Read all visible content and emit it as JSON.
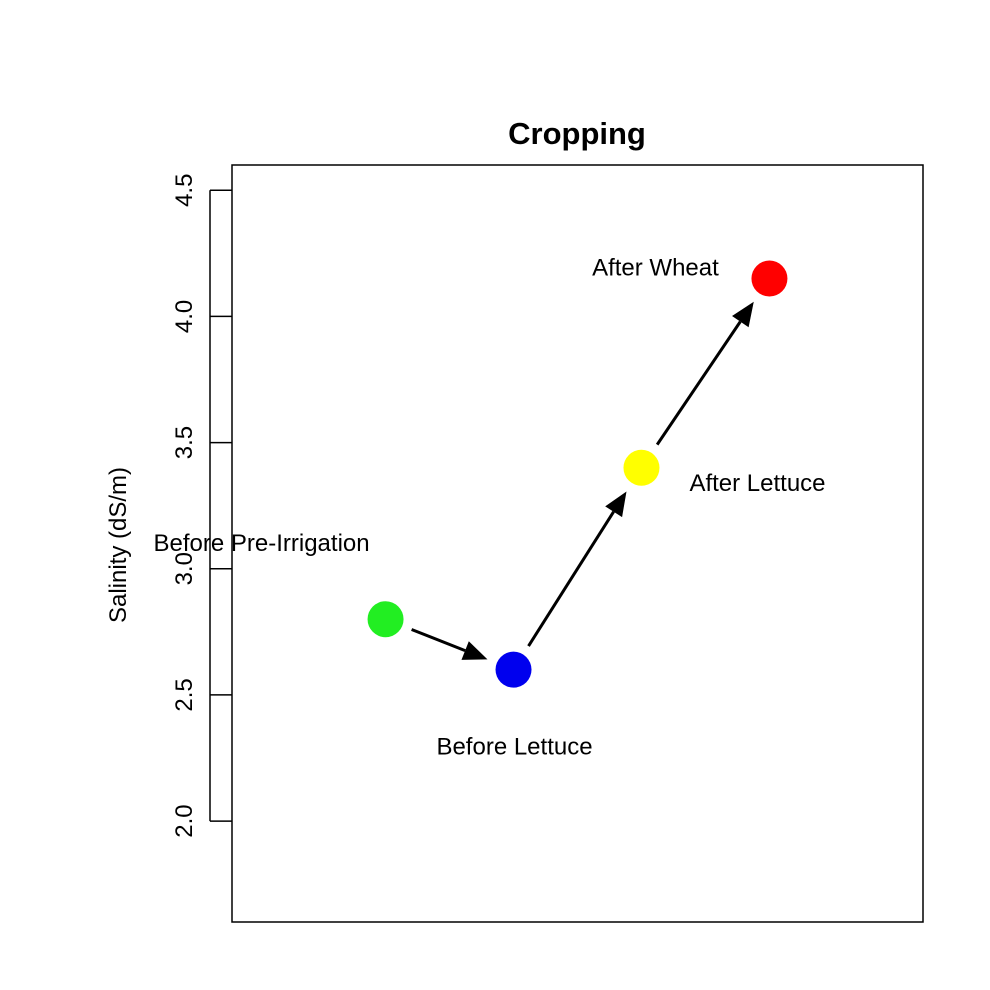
{
  "chart_data": {
    "type": "scatter",
    "title": "Cropping",
    "xlabel": "",
    "ylabel": "Salinity (dS/m)",
    "xlim": [
      0.5,
      5.9
    ],
    "ylim": [
      1.6,
      4.6
    ],
    "yticks": [
      "2.0",
      "2.5",
      "3.0",
      "3.5",
      "4.0",
      "4.5"
    ],
    "grid": false,
    "points": [
      {
        "label": "Before Pre-Irrigation",
        "x": 1.7,
        "y": 2.8,
        "color": "#22EE22",
        "label_pos": "above-left"
      },
      {
        "label": "Before Lettuce",
        "x": 2.7,
        "y": 2.6,
        "color": "#0000EE",
        "label_pos": "below"
      },
      {
        "label": "After Lettuce",
        "x": 3.7,
        "y": 3.4,
        "color": "#FFFF00",
        "label_pos": "below-right"
      },
      {
        "label": "After Wheat",
        "x": 4.7,
        "y": 4.15,
        "color": "#FF0000",
        "label_pos": "left"
      }
    ],
    "arrows": [
      {
        "from": 0,
        "to": 1
      },
      {
        "from": 1,
        "to": 2
      },
      {
        "from": 2,
        "to": 3
      }
    ]
  }
}
